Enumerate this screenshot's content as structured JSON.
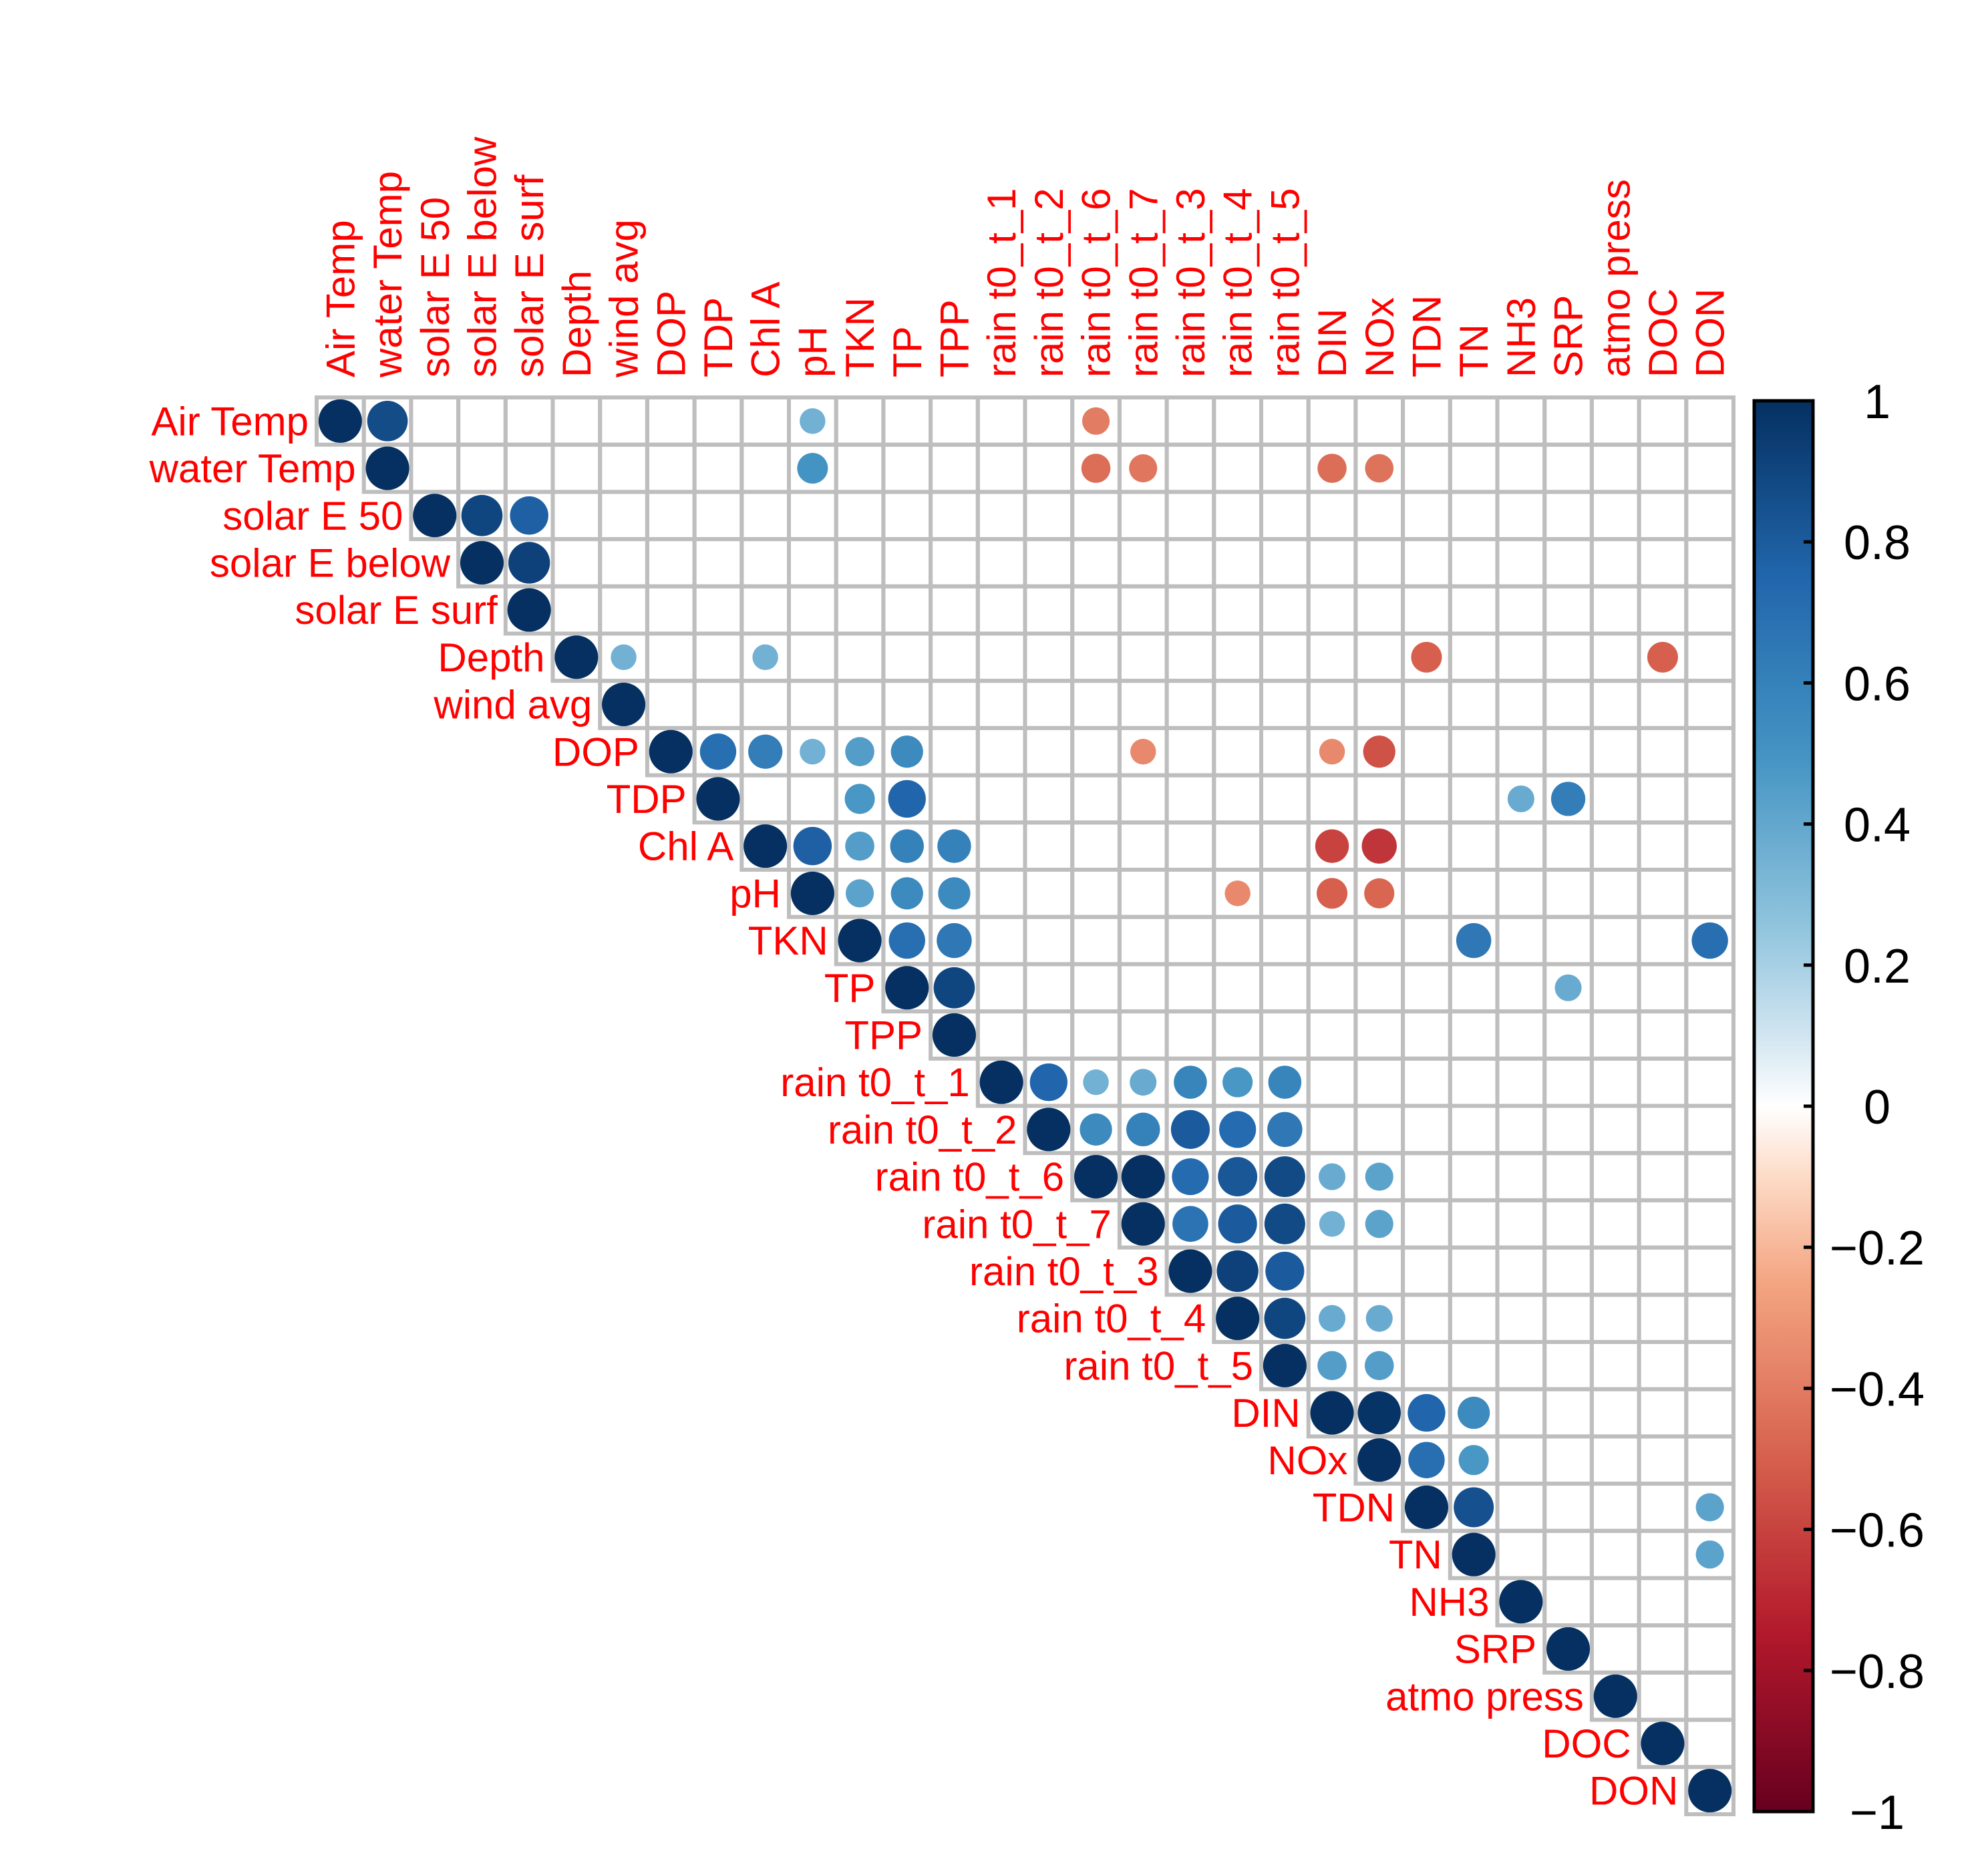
{
  "chart_data": {
    "type": "heatmap",
    "style": "corrplot-circle-upper",
    "variables": [
      "Air Temp",
      "water Temp",
      "solar E 50",
      "solar E below",
      "solar E surf",
      "Depth",
      "wind  avg",
      "DOP",
      "TDP",
      "Chl  A",
      "pH",
      "TKN",
      "TP",
      "TPP",
      "rain  t0_t_1",
      "rain  t0_t_2",
      "rain  t0_t_6",
      "rain  t0_t_7",
      "rain  t0_t_3",
      "rain  t0_t_4",
      "rain  t0_t_5",
      "DIN",
      "NOx",
      "TDN",
      "TN",
      "NH3",
      "SRP",
      "atmo  press",
      "DOC",
      "DON"
    ],
    "correlations": [
      {
        "row": "Air Temp",
        "col": "Air Temp",
        "value": 1.0
      },
      {
        "row": "Air Temp",
        "col": "water Temp",
        "value": 0.87
      },
      {
        "row": "Air Temp",
        "col": "pH",
        "value": 0.35
      },
      {
        "row": "Air Temp",
        "col": "rain  t0_t_6",
        "value": -0.4
      },
      {
        "row": "water Temp",
        "col": "water Temp",
        "value": 1.0
      },
      {
        "row": "water Temp",
        "col": "pH",
        "value": 0.5
      },
      {
        "row": "water Temp",
        "col": "rain  t0_t_6",
        "value": -0.45
      },
      {
        "row": "water Temp",
        "col": "rain  t0_t_7",
        "value": -0.42
      },
      {
        "row": "water Temp",
        "col": "DIN",
        "value": -0.45
      },
      {
        "row": "water Temp",
        "col": "NOx",
        "value": -0.43
      },
      {
        "row": "solar E 50",
        "col": "solar E 50",
        "value": 1.0
      },
      {
        "row": "solar E 50",
        "col": "solar E below",
        "value": 0.9
      },
      {
        "row": "solar E 50",
        "col": "solar E surf",
        "value": 0.78
      },
      {
        "row": "solar E below",
        "col": "solar E below",
        "value": 1.0
      },
      {
        "row": "solar E below",
        "col": "solar E surf",
        "value": 0.92
      },
      {
        "row": "solar E surf",
        "col": "solar E surf",
        "value": 1.0
      },
      {
        "row": "Depth",
        "col": "Depth",
        "value": 1.0
      },
      {
        "row": "Depth",
        "col": "wind  avg",
        "value": 0.35
      },
      {
        "row": "Depth",
        "col": "Chl  A",
        "value": 0.35
      },
      {
        "row": "Depth",
        "col": "TDN",
        "value": -0.5
      },
      {
        "row": "Depth",
        "col": "DOC",
        "value": -0.5
      },
      {
        "row": "wind  avg",
        "col": "wind  avg",
        "value": 1.0
      },
      {
        "row": "DOP",
        "col": "DOP",
        "value": 1.0
      },
      {
        "row": "DOP",
        "col": "TDP",
        "value": 0.7
      },
      {
        "row": "DOP",
        "col": "Chl  A",
        "value": 0.62
      },
      {
        "row": "DOP",
        "col": "pH",
        "value": 0.35
      },
      {
        "row": "DOP",
        "col": "TKN",
        "value": 0.45
      },
      {
        "row": "DOP",
        "col": "TP",
        "value": 0.55
      },
      {
        "row": "DOP",
        "col": "rain  t0_t_7",
        "value": -0.35
      },
      {
        "row": "DOP",
        "col": "DIN",
        "value": -0.35
      },
      {
        "row": "DOP",
        "col": "NOx",
        "value": -0.55
      },
      {
        "row": "TDP",
        "col": "TDP",
        "value": 1.0
      },
      {
        "row": "TDP",
        "col": "TKN",
        "value": 0.48
      },
      {
        "row": "TDP",
        "col": "TP",
        "value": 0.75
      },
      {
        "row": "TDP",
        "col": "NH3",
        "value": 0.38
      },
      {
        "row": "TDP",
        "col": "SRP",
        "value": 0.62
      },
      {
        "row": "Chl  A",
        "col": "Chl  A",
        "value": 1.0
      },
      {
        "row": "Chl  A",
        "col": "pH",
        "value": 0.78
      },
      {
        "row": "Chl  A",
        "col": "TKN",
        "value": 0.45
      },
      {
        "row": "Chl  A",
        "col": "TP",
        "value": 0.6
      },
      {
        "row": "Chl  A",
        "col": "TPP",
        "value": 0.6
      },
      {
        "row": "Chl  A",
        "col": "DIN",
        "value": -0.6
      },
      {
        "row": "Chl  A",
        "col": "NOx",
        "value": -0.65
      },
      {
        "row": "pH",
        "col": "pH",
        "value": 1.0
      },
      {
        "row": "pH",
        "col": "TKN",
        "value": 0.42
      },
      {
        "row": "pH",
        "col": "TP",
        "value": 0.55
      },
      {
        "row": "pH",
        "col": "TPP",
        "value": 0.55
      },
      {
        "row": "pH",
        "col": "rain  t0_t_4",
        "value": -0.35
      },
      {
        "row": "pH",
        "col": "DIN",
        "value": -0.5
      },
      {
        "row": "pH",
        "col": "NOx",
        "value": -0.48
      },
      {
        "row": "TKN",
        "col": "TKN",
        "value": 1.0
      },
      {
        "row": "TKN",
        "col": "TP",
        "value": 0.7
      },
      {
        "row": "TKN",
        "col": "TPP",
        "value": 0.65
      },
      {
        "row": "TKN",
        "col": "TN",
        "value": 0.65
      },
      {
        "row": "TKN",
        "col": "DON",
        "value": 0.7
      },
      {
        "row": "TP",
        "col": "TP",
        "value": 1.0
      },
      {
        "row": "TP",
        "col": "TPP",
        "value": 0.9
      },
      {
        "row": "TP",
        "col": "SRP",
        "value": 0.38
      },
      {
        "row": "TPP",
        "col": "TPP",
        "value": 1.0
      },
      {
        "row": "rain  t0_t_1",
        "col": "rain  t0_t_1",
        "value": 1.0
      },
      {
        "row": "rain  t0_t_1",
        "col": "rain  t0_t_2",
        "value": 0.75
      },
      {
        "row": "rain  t0_t_1",
        "col": "rain  t0_t_6",
        "value": 0.35
      },
      {
        "row": "rain  t0_t_1",
        "col": "rain  t0_t_7",
        "value": 0.38
      },
      {
        "row": "rain  t0_t_1",
        "col": "rain  t0_t_3",
        "value": 0.58
      },
      {
        "row": "rain  t0_t_1",
        "col": "rain  t0_t_4",
        "value": 0.48
      },
      {
        "row": "rain  t0_t_1",
        "col": "rain  t0_t_5",
        "value": 0.58
      },
      {
        "row": "rain  t0_t_2",
        "col": "rain  t0_t_2",
        "value": 1.0
      },
      {
        "row": "rain  t0_t_2",
        "col": "rain  t0_t_6",
        "value": 0.55
      },
      {
        "row": "rain  t0_t_2",
        "col": "rain  t0_t_7",
        "value": 0.6
      },
      {
        "row": "rain  t0_t_2",
        "col": "rain  t0_t_3",
        "value": 0.8
      },
      {
        "row": "rain  t0_t_2",
        "col": "rain  t0_t_4",
        "value": 0.72
      },
      {
        "row": "rain  t0_t_2",
        "col": "rain  t0_t_5",
        "value": 0.65
      },
      {
        "row": "rain  t0_t_6",
        "col": "rain  t0_t_6",
        "value": 1.0
      },
      {
        "row": "rain  t0_t_6",
        "col": "rain  t0_t_7",
        "value": 1.0
      },
      {
        "row": "rain  t0_t_6",
        "col": "rain  t0_t_3",
        "value": 0.72
      },
      {
        "row": "rain  t0_t_6",
        "col": "rain  t0_t_4",
        "value": 0.82
      },
      {
        "row": "rain  t0_t_6",
        "col": "rain  t0_t_5",
        "value": 0.88
      },
      {
        "row": "rain  t0_t_6",
        "col": "DIN",
        "value": 0.38
      },
      {
        "row": "rain  t0_t_6",
        "col": "NOx",
        "value": 0.42
      },
      {
        "row": "rain  t0_t_7",
        "col": "rain  t0_t_7",
        "value": 1.0
      },
      {
        "row": "rain  t0_t_7",
        "col": "rain  t0_t_3",
        "value": 0.68
      },
      {
        "row": "rain  t0_t_7",
        "col": "rain  t0_t_4",
        "value": 0.8
      },
      {
        "row": "rain  t0_t_7",
        "col": "rain  t0_t_5",
        "value": 0.88
      },
      {
        "row": "rain  t0_t_7",
        "col": "DIN",
        "value": 0.35
      },
      {
        "row": "rain  t0_t_7",
        "col": "NOx",
        "value": 0.42
      },
      {
        "row": "rain  t0_t_3",
        "col": "rain  t0_t_3",
        "value": 1.0
      },
      {
        "row": "rain  t0_t_3",
        "col": "rain  t0_t_4",
        "value": 0.92
      },
      {
        "row": "rain  t0_t_3",
        "col": "rain  t0_t_5",
        "value": 0.8
      },
      {
        "row": "rain  t0_t_4",
        "col": "rain  t0_t_4",
        "value": 1.0
      },
      {
        "row": "rain  t0_t_4",
        "col": "rain  t0_t_5",
        "value": 0.9
      },
      {
        "row": "rain  t0_t_4",
        "col": "DIN",
        "value": 0.38
      },
      {
        "row": "rain  t0_t_4",
        "col": "NOx",
        "value": 0.38
      },
      {
        "row": "rain  t0_t_5",
        "col": "rain  t0_t_5",
        "value": 1.0
      },
      {
        "row": "rain  t0_t_5",
        "col": "DIN",
        "value": 0.45
      },
      {
        "row": "rain  t0_t_5",
        "col": "NOx",
        "value": 0.45
      },
      {
        "row": "DIN",
        "col": "DIN",
        "value": 1.0
      },
      {
        "row": "DIN",
        "col": "NOx",
        "value": 0.98
      },
      {
        "row": "DIN",
        "col": "TDN",
        "value": 0.75
      },
      {
        "row": "DIN",
        "col": "TN",
        "value": 0.55
      },
      {
        "row": "NOx",
        "col": "NOx",
        "value": 1.0
      },
      {
        "row": "NOx",
        "col": "TDN",
        "value": 0.7
      },
      {
        "row": "NOx",
        "col": "TN",
        "value": 0.48
      },
      {
        "row": "TDN",
        "col": "TDN",
        "value": 1.0
      },
      {
        "row": "TDN",
        "col": "TN",
        "value": 0.85
      },
      {
        "row": "TDN",
        "col": "DON",
        "value": 0.42
      },
      {
        "row": "TN",
        "col": "TN",
        "value": 1.0
      },
      {
        "row": "TN",
        "col": "DON",
        "value": 0.42
      },
      {
        "row": "NH3",
        "col": "NH3",
        "value": 1.0
      },
      {
        "row": "SRP",
        "col": "SRP",
        "value": 1.0
      },
      {
        "row": "atmo  press",
        "col": "atmo  press",
        "value": 1.0
      },
      {
        "row": "DOC",
        "col": "DOC",
        "value": 1.0
      },
      {
        "row": "DON",
        "col": "DON",
        "value": 1.0
      }
    ],
    "colorbar": {
      "range": [
        -1,
        1
      ],
      "ticks": [
        "1",
        "0.8",
        "0.6",
        "0.4",
        "0.2",
        "0",
        "−0.2",
        "−0.4",
        "−0.6",
        "−0.8",
        "−1"
      ],
      "tick_values": [
        1,
        0.8,
        0.6,
        0.4,
        0.2,
        0,
        -0.2,
        -0.4,
        -0.6,
        -0.8,
        -1
      ],
      "gradient_stops": [
        {
          "value": -1.0,
          "color": "#67001f"
        },
        {
          "value": -0.75,
          "color": "#b2182b"
        },
        {
          "value": -0.5,
          "color": "#d6604d"
        },
        {
          "value": -0.25,
          "color": "#f4a582"
        },
        {
          "value": -0.1,
          "color": "#fddbc7"
        },
        {
          "value": 0.0,
          "color": "#ffffff"
        },
        {
          "value": 0.1,
          "color": "#d1e5f0"
        },
        {
          "value": 0.25,
          "color": "#92c5de"
        },
        {
          "value": 0.5,
          "color": "#4393c3"
        },
        {
          "value": 0.75,
          "color": "#2166ac"
        },
        {
          "value": 1.0,
          "color": "#053061"
        }
      ]
    },
    "label_color": "#ff0000",
    "grid_color": "#bebebe"
  }
}
